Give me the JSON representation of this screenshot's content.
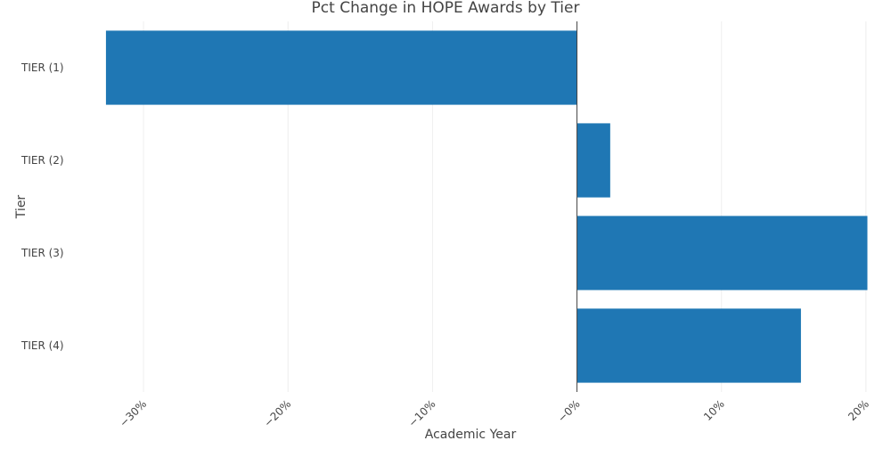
{
  "chart_data": {
    "type": "bar",
    "orientation": "horizontal",
    "title": "Pct Change in HOPE Awards by Tier",
    "xlabel": "Academic Year",
    "ylabel": "Tier",
    "categories": [
      "TIER (1)",
      "TIER (2)",
      "TIER (3)",
      "TIER (4)"
    ],
    "values": [
      -32.6,
      2.3,
      20.1,
      15.5
    ],
    "xlim": [
      -35,
      20.5
    ],
    "xticks": [
      -30,
      -20,
      -10,
      0,
      10,
      20
    ],
    "xtick_labels": [
      "−30%",
      "−20%",
      "−10%",
      "−0%",
      "10%",
      "20%"
    ],
    "grid": "vertical",
    "legend": "none",
    "bar_color": "#1f77b4"
  }
}
